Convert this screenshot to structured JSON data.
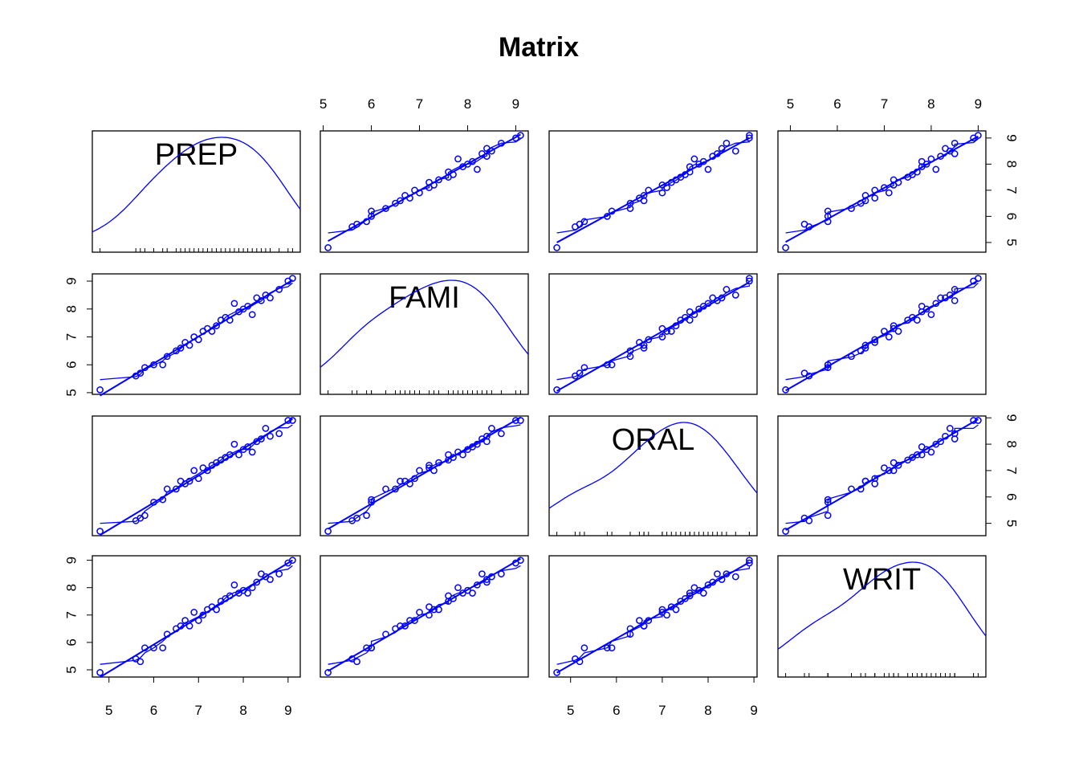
{
  "title": "Matrix",
  "colors": {
    "series": "#0000ff",
    "axis": "#000000",
    "background": "#ffffff"
  },
  "chart_data": {
    "type": "scatter",
    "kind": "scatterplot-matrix",
    "title": "Matrix",
    "variables": [
      "PREP",
      "FAMI",
      "ORAL",
      "WRIT"
    ],
    "diagonal": "density",
    "off_diagonal": "scatter with fitted lines",
    "ticks": [
      5,
      6,
      7,
      8,
      9
    ],
    "tick_labels": [
      "5",
      "6",
      "7",
      "8",
      "9"
    ],
    "ranges": {
      "PREP": [
        4.8,
        9.1
      ],
      "FAMI": [
        5.1,
        9.1
      ],
      "ORAL": [
        4.7,
        8.9
      ],
      "WRIT": [
        4.9,
        9.0
      ]
    },
    "observations": [
      {
        "PREP": 4.8,
        "FAMI": 5.1,
        "ORAL": 4.7,
        "WRIT": 4.9
      },
      {
        "PREP": 5.6,
        "FAMI": 5.6,
        "ORAL": 5.1,
        "WRIT": 5.4
      },
      {
        "PREP": 5.7,
        "FAMI": 5.7,
        "ORAL": 5.2,
        "WRIT": 5.3
      },
      {
        "PREP": 5.8,
        "FAMI": 5.9,
        "ORAL": 5.3,
        "WRIT": 5.8
      },
      {
        "PREP": 6.0,
        "FAMI": 6.0,
        "ORAL": 5.8,
        "WRIT": 5.8
      },
      {
        "PREP": 6.2,
        "FAMI": 6.0,
        "ORAL": 5.9,
        "WRIT": 5.8
      },
      {
        "PREP": 6.3,
        "FAMI": 6.3,
        "ORAL": 6.3,
        "WRIT": 6.3
      },
      {
        "PREP": 6.5,
        "FAMI": 6.5,
        "ORAL": 6.3,
        "WRIT": 6.5
      },
      {
        "PREP": 6.6,
        "FAMI": 6.6,
        "ORAL": 6.6,
        "WRIT": 6.6
      },
      {
        "PREP": 6.7,
        "FAMI": 6.8,
        "ORAL": 6.5,
        "WRIT": 6.8
      },
      {
        "PREP": 6.8,
        "FAMI": 6.7,
        "ORAL": 6.6,
        "WRIT": 6.6
      },
      {
        "PREP": 6.9,
        "FAMI": 7.0,
        "ORAL": 7.0,
        "WRIT": 7.1
      },
      {
        "PREP": 7.0,
        "FAMI": 6.9,
        "ORAL": 6.7,
        "WRIT": 6.8
      },
      {
        "PREP": 7.1,
        "FAMI": 7.2,
        "ORAL": 7.1,
        "WRIT": 7.0
      },
      {
        "PREP": 7.2,
        "FAMI": 7.3,
        "ORAL": 7.0,
        "WRIT": 7.2
      },
      {
        "PREP": 7.3,
        "FAMI": 7.2,
        "ORAL": 7.2,
        "WRIT": 7.3
      },
      {
        "PREP": 7.4,
        "FAMI": 7.4,
        "ORAL": 7.3,
        "WRIT": 7.2
      },
      {
        "PREP": 7.5,
        "FAMI": 7.6,
        "ORAL": 7.4,
        "WRIT": 7.5
      },
      {
        "PREP": 7.6,
        "FAMI": 7.7,
        "ORAL": 7.5,
        "WRIT": 7.6
      },
      {
        "PREP": 7.7,
        "FAMI": 7.6,
        "ORAL": 7.6,
        "WRIT": 7.7
      },
      {
        "PREP": 7.8,
        "FAMI": 8.2,
        "ORAL": 8.0,
        "WRIT": 8.1
      },
      {
        "PREP": 7.9,
        "FAMI": 7.9,
        "ORAL": 7.6,
        "WRIT": 7.8
      },
      {
        "PREP": 8.0,
        "FAMI": 8.0,
        "ORAL": 7.8,
        "WRIT": 7.9
      },
      {
        "PREP": 8.1,
        "FAMI": 8.1,
        "ORAL": 7.9,
        "WRIT": 7.8
      },
      {
        "PREP": 8.2,
        "FAMI": 7.8,
        "ORAL": 7.7,
        "WRIT": 8.0
      },
      {
        "PREP": 8.3,
        "FAMI": 8.4,
        "ORAL": 8.1,
        "WRIT": 8.2
      },
      {
        "PREP": 8.4,
        "FAMI": 8.3,
        "ORAL": 8.2,
        "WRIT": 8.5
      },
      {
        "PREP": 8.5,
        "FAMI": 8.5,
        "ORAL": 8.6,
        "WRIT": 8.4
      },
      {
        "PREP": 8.6,
        "FAMI": 8.4,
        "ORAL": 8.3,
        "WRIT": 8.3
      },
      {
        "PREP": 8.8,
        "FAMI": 8.7,
        "ORAL": 8.4,
        "WRIT": 8.5
      },
      {
        "PREP": 9.0,
        "FAMI": 9.0,
        "ORAL": 8.9,
        "WRIT": 8.9
      },
      {
        "PREP": 9.1,
        "FAMI": 9.1,
        "ORAL": 8.9,
        "WRIT": 9.0
      }
    ]
  }
}
